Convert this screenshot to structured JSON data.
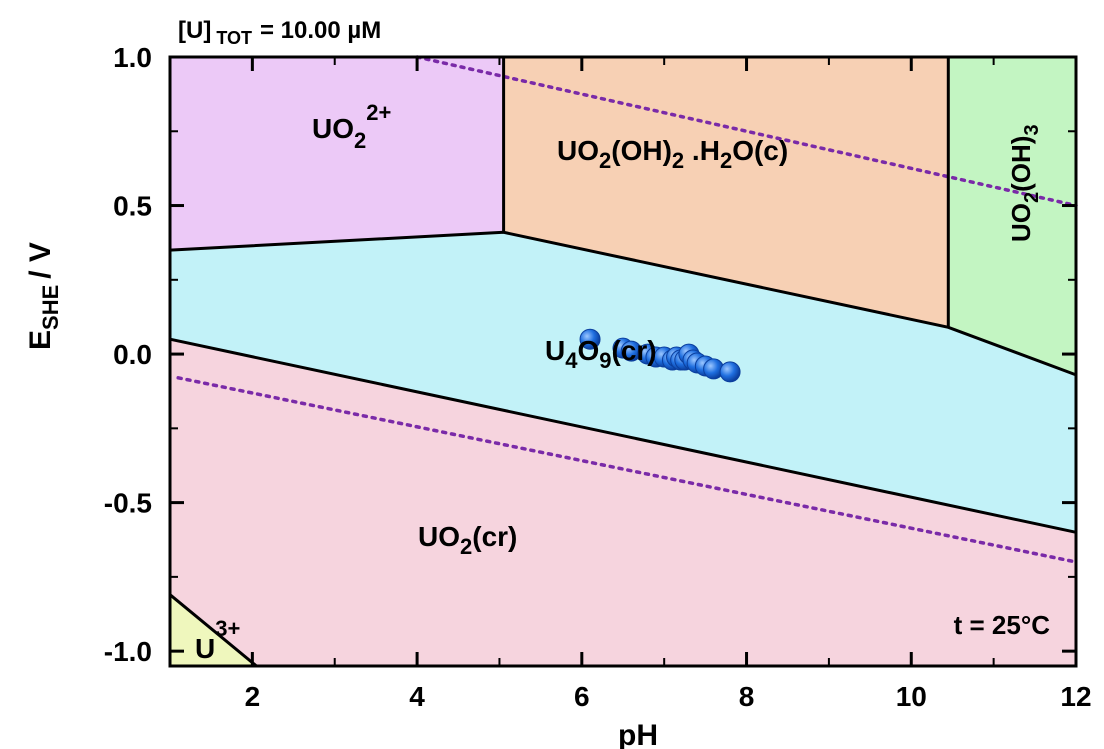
{
  "chart_data": {
    "type": "scatter",
    "header": "[U] TOT = 10.00 µM",
    "header_main": "[U]",
    "header_sub": "TOT",
    "header_value": "= 10.00 µM",
    "xlabel": "pH",
    "ylabel_main": "E",
    "ylabel_sub": "SHE",
    "ylabel_unit": "/ V",
    "xlim": [
      1,
      12
    ],
    "ylim": [
      -1.05,
      1.0
    ],
    "x_ticks": [
      2,
      4,
      6,
      8,
      10,
      12
    ],
    "x_tick_labels": [
      "2",
      "4",
      "6",
      "8",
      "10",
      "12"
    ],
    "y_ticks": [
      1.0,
      0.5,
      0.0,
      -0.5,
      -1.0
    ],
    "y_tick_labels": [
      "1.0",
      "0.5",
      "0.0",
      "-0.5",
      "-1.0"
    ],
    "temperature_label": "t = 25°C",
    "species_labels": {
      "uo2_2plus": {
        "main": "UO",
        "sub": "2",
        "sup": "2+"
      },
      "uo2oh2": {
        "p1": "UO",
        "s1": "2",
        "p2": "(OH)",
        "s2": "2",
        "p3": " .H",
        "s3": "2",
        "p4": "O(c)"
      },
      "uo2oh3": {
        "p1": "UO",
        "s1": "2",
        "p2": "(OH)",
        "s2": "3"
      },
      "u4o9": {
        "p1": "U",
        "s1": "4",
        "p2": "O",
        "s2": "9",
        "p3": "(cr)"
      },
      "uo2cr": {
        "p1": "UO",
        "s1": "2",
        "p2": "(cr)"
      },
      "u3plus": {
        "main": "U",
        "sup": "3+"
      }
    },
    "regions": [
      {
        "name": "UO2 2+",
        "color": "#ecc9f7",
        "polygon": [
          [
            1,
            1.0
          ],
          [
            5.05,
            1.0
          ],
          [
            5.05,
            0.41
          ],
          [
            1,
            0.35
          ]
        ]
      },
      {
        "name": "UO2(OH)2 .H2O(c)",
        "color": "#f7d0b4",
        "polygon": [
          [
            5.05,
            1.0
          ],
          [
            10.45,
            1.0
          ],
          [
            10.45,
            0.09
          ],
          [
            5.05,
            0.41
          ]
        ]
      },
      {
        "name": "UO2(OH)3",
        "color": "#c3f5c2",
        "polygon": [
          [
            10.45,
            1.0
          ],
          [
            12,
            1.0
          ],
          [
            12,
            -0.07
          ],
          [
            10.45,
            0.09
          ]
        ]
      },
      {
        "name": "U4O9(cr)",
        "color": "#c2f2f8",
        "polygon": [
          [
            1,
            0.35
          ],
          [
            5.05,
            0.41
          ],
          [
            10.45,
            0.09
          ],
          [
            12,
            -0.07
          ],
          [
            12,
            -0.6
          ],
          [
            1,
            0.05
          ]
        ]
      },
      {
        "name": "UO2(cr)",
        "color": "#f6d4de",
        "polygon": [
          [
            1,
            0.05
          ],
          [
            12,
            -0.6
          ],
          [
            12,
            -1.05
          ],
          [
            2.05,
            -1.05
          ],
          [
            1,
            -0.81
          ]
        ]
      },
      {
        "name": "U3+",
        "color": "#eff7bd",
        "polygon": [
          [
            1,
            -0.81
          ],
          [
            2.05,
            -1.05
          ],
          [
            1,
            -1.05
          ]
        ]
      }
    ],
    "boundaries": [
      [
        [
          1,
          0.35
        ],
        [
          5.05,
          0.41
        ],
        [
          10.45,
          0.09
        ],
        [
          12,
          -0.07
        ]
      ],
      [
        [
          5.05,
          1.0
        ],
        [
          5.05,
          0.41
        ]
      ],
      [
        [
          10.45,
          1.0
        ],
        [
          10.45,
          0.09
        ]
      ],
      [
        [
          1,
          0.05
        ],
        [
          12,
          -0.6
        ]
      ],
      [
        [
          1,
          -0.81
        ],
        [
          2.05,
          -1.05
        ]
      ]
    ],
    "water_lines": [
      [
        [
          4.0,
          1.0
        ],
        [
          12,
          0.5
        ]
      ],
      [
        [
          1.1,
          -0.08
        ],
        [
          12,
          -0.7
        ]
      ]
    ],
    "series": [
      {
        "marker_color": "#1f6fe0",
        "points": [
          [
            6.1,
            0.05
          ],
          [
            6.5,
            0.02
          ],
          [
            6.6,
            0.01
          ],
          [
            6.8,
            0.0
          ],
          [
            6.9,
            -0.01
          ],
          [
            7.0,
            -0.01
          ],
          [
            7.1,
            -0.02
          ],
          [
            7.15,
            -0.01
          ],
          [
            7.2,
            -0.02
          ],
          [
            7.25,
            -0.02
          ],
          [
            7.3,
            0.0
          ],
          [
            7.35,
            -0.02
          ],
          [
            7.4,
            -0.03
          ],
          [
            7.5,
            -0.04
          ],
          [
            7.6,
            -0.05
          ],
          [
            7.8,
            -0.06
          ]
        ]
      }
    ]
  }
}
